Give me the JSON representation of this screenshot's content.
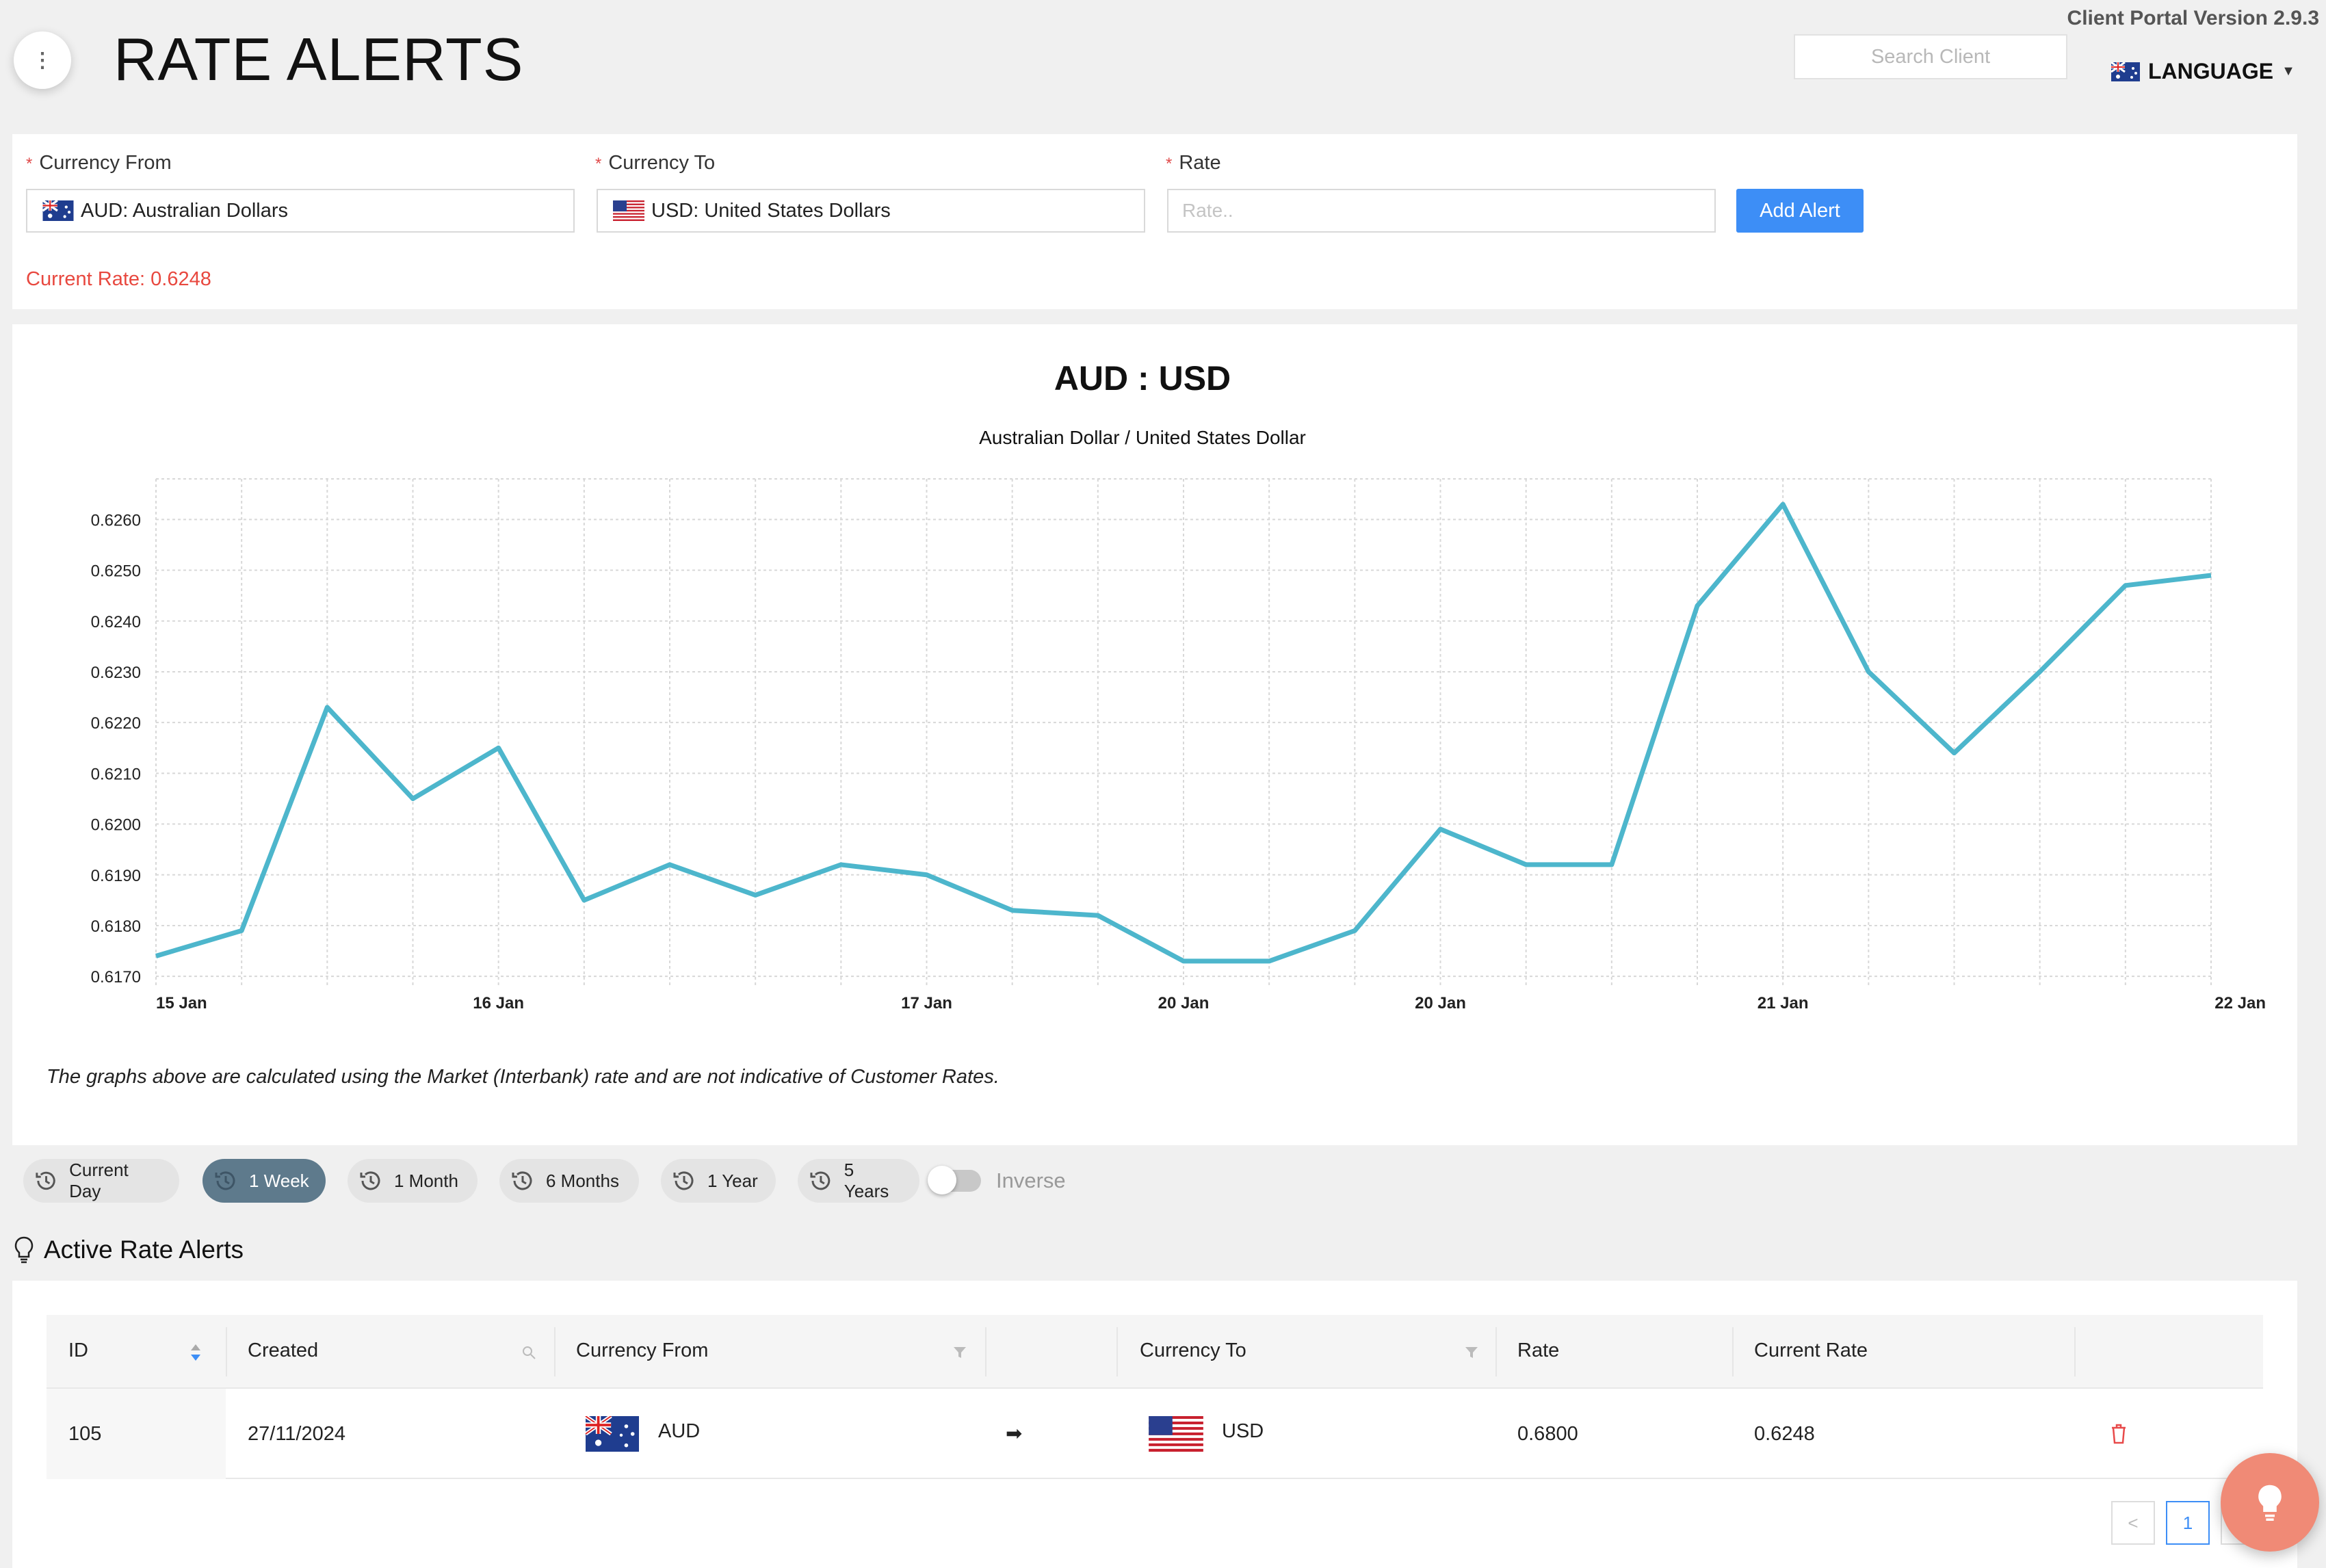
{
  "header": {
    "title": "RATE ALERTS",
    "version": "Client Portal Version 2.9.3",
    "search_placeholder": "Search Client",
    "language_label": "LANGUAGE",
    "menu_icon": "more-vertical-icon"
  },
  "form": {
    "currency_from_label": "Currency From",
    "currency_from_value": "AUD: Australian Dollars",
    "currency_to_label": "Currency To",
    "currency_to_value": "USD: United States Dollars",
    "rate_label": "Rate",
    "rate_placeholder": "Rate..",
    "add_button": "Add Alert",
    "required_mark": "*",
    "current_rate": "Current Rate: 0.6248"
  },
  "chart": {
    "title": "AUD : USD",
    "subtitle": "Australian Dollar / United States Dollar",
    "disclaimer": "The graphs above are calculated using the Market (Interbank) rate and are not indicative of Customer Rates.",
    "line_color": "#4db6cc"
  },
  "chart_data": {
    "type": "line",
    "title": "AUD : USD",
    "subtitle": "Australian Dollar / United States Dollar",
    "xlabel": "",
    "ylabel": "",
    "ylim": [
      0.6168,
      0.6268
    ],
    "yticks": [
      "0.6170",
      "0.6180",
      "0.6190",
      "0.6200",
      "0.6210",
      "0.6220",
      "0.6230",
      "0.6240",
      "0.6250",
      "0.6260"
    ],
    "xtick_labels": [
      "15 Jan",
      "16 Jan",
      "17 Jan",
      "20 Jan",
      "20 Jan",
      "21 Jan",
      "22 Jan"
    ],
    "xtick_index": [
      0,
      4,
      9,
      12,
      15,
      19,
      24
    ],
    "grid": true,
    "series": [
      {
        "values": [
          0.6174,
          0.6179,
          0.6223,
          0.6205,
          0.6215,
          0.6185,
          0.6192,
          0.6186,
          0.6192,
          0.619,
          0.6183,
          0.6182,
          0.6173,
          0.6173,
          0.6179,
          0.6199,
          0.6192,
          0.6192,
          0.6243,
          0.6263,
          0.623,
          0.6214,
          0.623,
          0.6247,
          0.6249
        ]
      }
    ]
  },
  "ranges": {
    "buttons": [
      "Current Day",
      "1 Week",
      "1 Month",
      "6 Months",
      "1 Year",
      "5 Years"
    ],
    "active": "1 Week",
    "inverse_label": "Inverse"
  },
  "alerts": {
    "title": "Active Rate Alerts",
    "columns": {
      "id": "ID",
      "created": "Created",
      "currency_from": "Currency From",
      "currency_to": "Currency To",
      "rate": "Rate",
      "current_rate": "Current Rate"
    },
    "rows": [
      {
        "id": "105",
        "created": "27/11/2024",
        "from": "AUD",
        "arrow": "➡",
        "to": "USD",
        "rate": "0.6800",
        "current_rate": "0.6248"
      }
    ],
    "page": "1",
    "prev": "<"
  }
}
